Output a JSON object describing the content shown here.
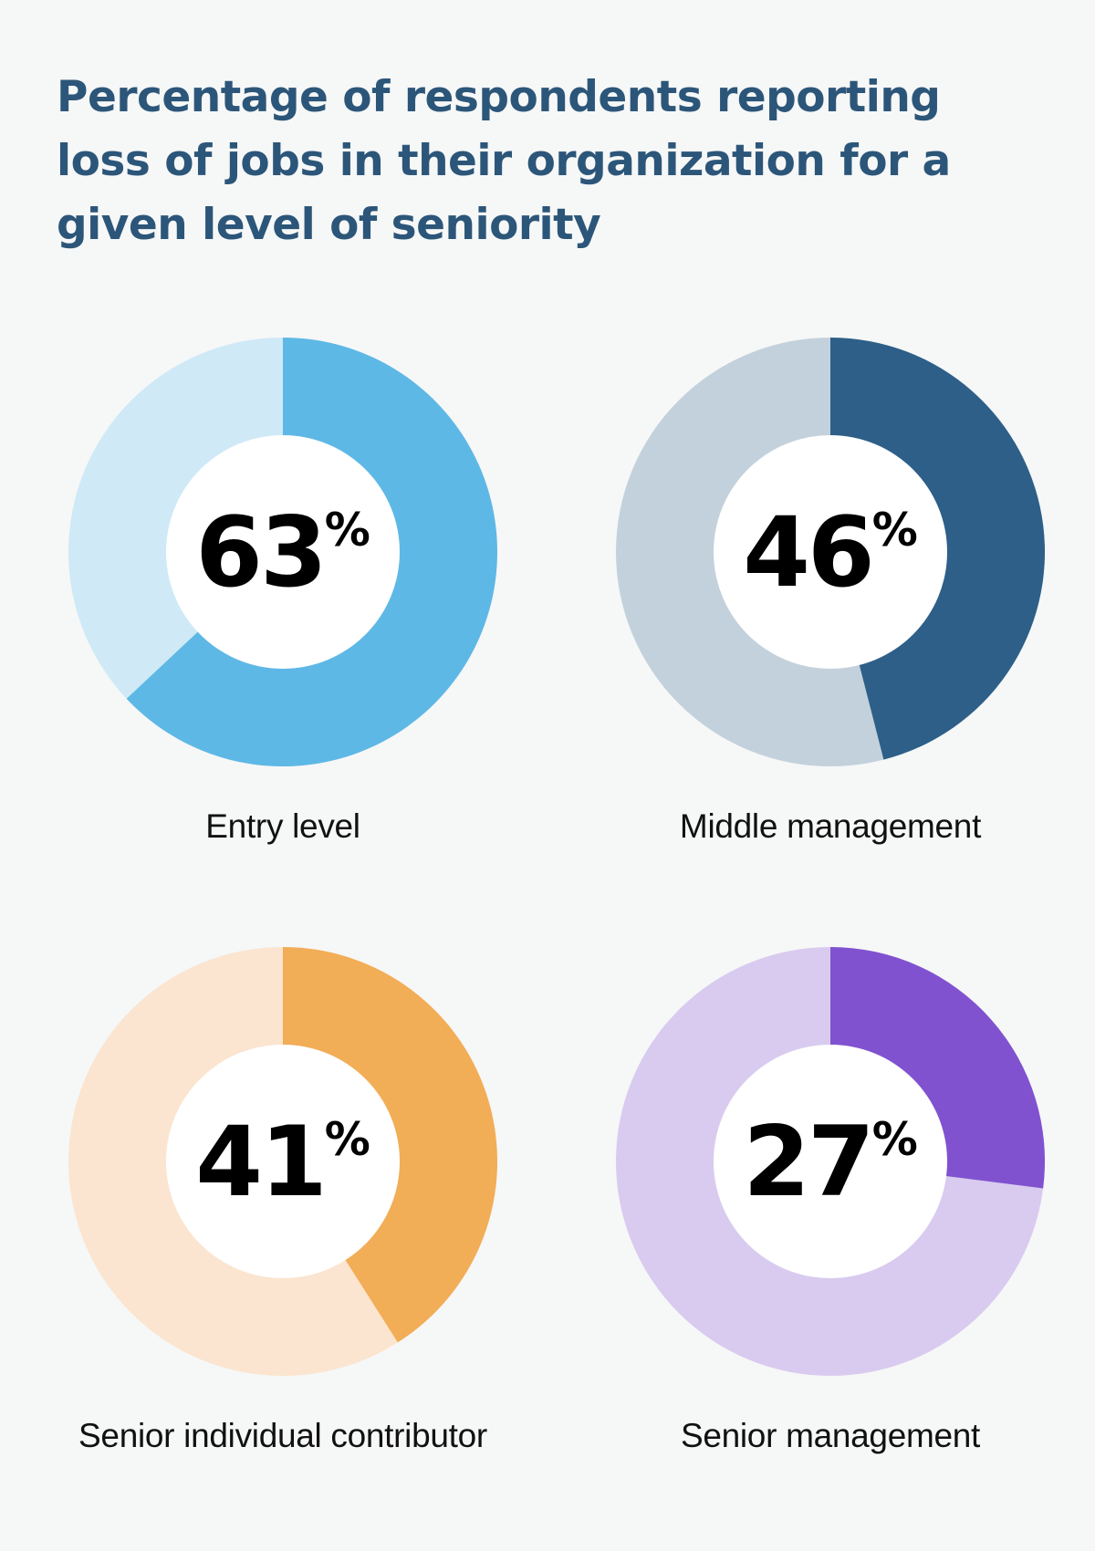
{
  "chart_data": {
    "type": "pie",
    "title": "Percentage of respondents reporting loss of jobs in their organization for a given level of seniority",
    "unit": "%",
    "series": [
      {
        "name": "Entry level",
        "value": 63,
        "colors": {
          "fill": "#5eb8e6",
          "track": "#cfe9f7"
        }
      },
      {
        "name": "Middle management",
        "value": 46,
        "colors": {
          "fill": "#2d5f88",
          "track": "#c3d1dc"
        }
      },
      {
        "name": "Senior individual contributor",
        "value": 41,
        "colors": {
          "fill": "#f2ad57",
          "track": "#fbe5d0"
        }
      },
      {
        "name": "Senior management",
        "value": 27,
        "colors": {
          "fill": "#8052cf",
          "track": "#d9cbef"
        }
      }
    ]
  }
}
